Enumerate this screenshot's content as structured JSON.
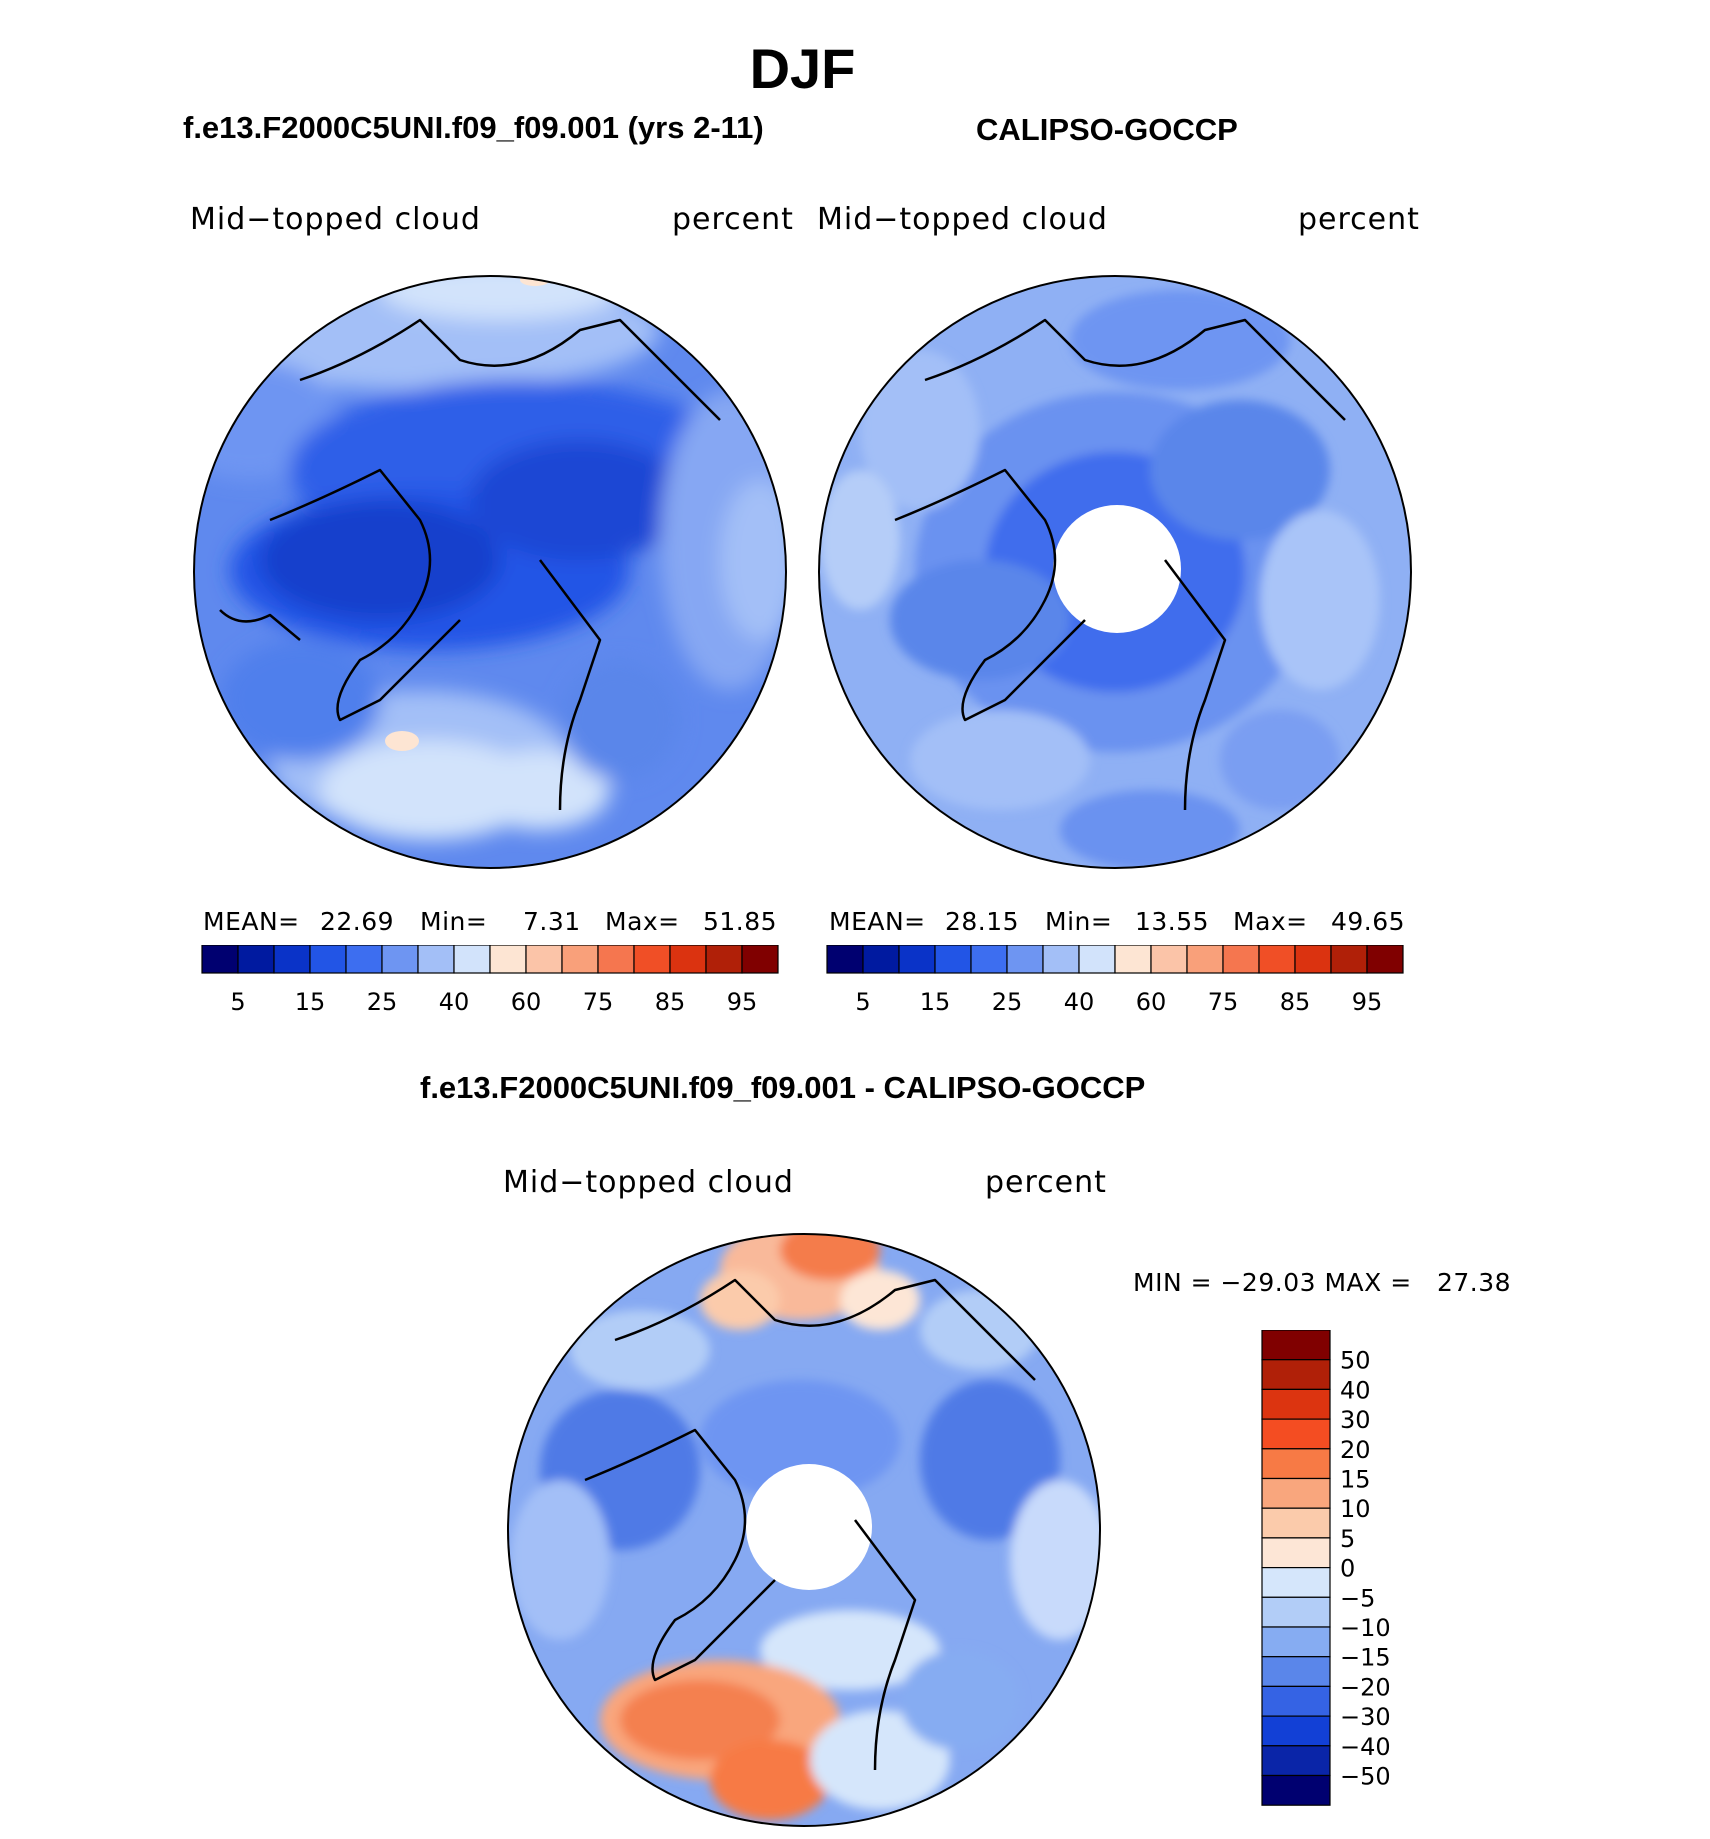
{
  "title": "DJF",
  "panels": [
    {
      "id": "model",
      "heading": "f.e13.F2000C5UNI.f09_f09.001 (yrs 2-11)",
      "variable": "Mid−topped cloud",
      "units": "percent",
      "stats": {
        "mean_label": "MEAN=",
        "mean": "22.69",
        "min_label": "Min=",
        "min": "7.31",
        "max_label": "Max=",
        "max": "51.85"
      }
    },
    {
      "id": "obs",
      "heading": "CALIPSO-GOCCP",
      "variable": "Mid−topped cloud",
      "units": "percent",
      "stats": {
        "mean_label": "MEAN=",
        "mean": "28.15",
        "min_label": "Min=",
        "min": "13.55",
        "max_label": "Max=",
        "max": "49.65"
      }
    }
  ],
  "abs_colorbar": {
    "colors": [
      "#000070",
      "#001aa0",
      "#0a33c8",
      "#2255e6",
      "#3d6ef0",
      "#6e95f2",
      "#a3bff7",
      "#d2e3fb",
      "#fde5d3",
      "#fbc4a8",
      "#f9a07a",
      "#f5764f",
      "#f04f26",
      "#db3310",
      "#b02008",
      "#800000"
    ],
    "ticks": [
      "5",
      "15",
      "25",
      "40",
      "60",
      "75",
      "85",
      "95"
    ]
  },
  "difference": {
    "heading": "f.e13.F2000C5UNI.f09_f09.001 - CALIPSO-GOCCP",
    "variable": "Mid−topped cloud",
    "units": "percent",
    "minmax_text": "MIN = −29.03 MAX =   27.38",
    "colorbar": {
      "colors_top_to_bottom": [
        "#800000",
        "#b02008",
        "#dc3410",
        "#f44d22",
        "#f77a45",
        "#f9a67d",
        "#fbcbab",
        "#fde6d6",
        "#d5e6fb",
        "#b2cdf7",
        "#86acf2",
        "#5a86ea",
        "#3563e4",
        "#1240d6",
        "#0a25a8",
        "#000070"
      ],
      "ticks": [
        "50",
        "40",
        "30",
        "20",
        "15",
        "10",
        "5",
        "0",
        "−5",
        "−10",
        "−15",
        "−20",
        "−30",
        "−40",
        "−50"
      ]
    }
  }
}
